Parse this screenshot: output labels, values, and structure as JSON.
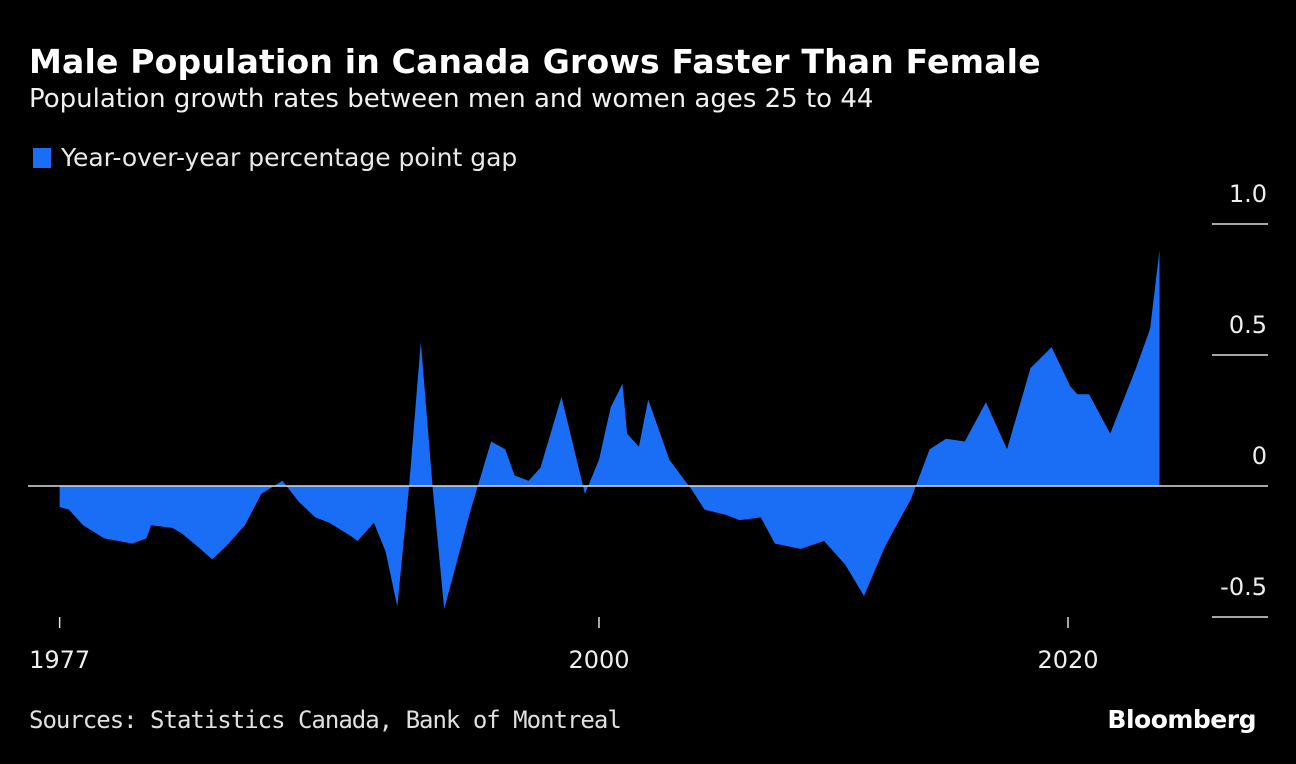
{
  "title": "Male Population in Canada Grows Faster Than Female",
  "subtitle": "Population growth rates between men and women ages 25 to 44",
  "source": "Sources: Statistics Canada, Bank of Montreal",
  "logo": "Bloomberg",
  "chart_data": {
    "type": "area",
    "title": "Male Population in Canada Grows Faster Than Female",
    "subtitle": "Population growth rates between men and women ages 25 to 44",
    "legend_position": "top-left",
    "grid": true,
    "ylim": [
      -0.5,
      1.0
    ],
    "yticks": [
      1.0,
      0.5,
      0,
      -0.5
    ],
    "ytick_labels": [
      "1.0",
      "0.5",
      "0",
      "-0.5"
    ],
    "xticks": [
      1977,
      2000,
      2020
    ],
    "xtick_labels": [
      "1977",
      "2000",
      "2020"
    ],
    "series": [
      {
        "name": "Year-over-year percentage point gap",
        "color": "#1a6ef5",
        "x": [
          1977.0,
          1977.4,
          1978.0,
          1978.9,
          1979.5,
          1980.1,
          1980.7,
          1980.9,
          1981.8,
          1982.2,
          1983.0,
          1983.5,
          1984.1,
          1984.9,
          1985.6,
          1986.5,
          1987.2,
          1987.9,
          1988.5,
          1989.4,
          1989.7,
          1990.4,
          1990.9,
          1991.4,
          1991.9,
          1992.4,
          1992.9,
          1993.4,
          1994.5,
          1995.4,
          1996.0,
          1996.4,
          1997.0,
          1997.5,
          1998.4,
          1999.4,
          2000.0,
          2000.5,
          2001.0,
          2001.2,
          2001.7,
          2002.1,
          2003.0,
          2004.0,
          2004.5,
          2005.4,
          2006.0,
          2006.9,
          2007.5,
          2008.6,
          2009.6,
          2010.5,
          2011.3,
          2012.2,
          2013.3,
          2014.1,
          2014.8,
          2015.6,
          2016.5,
          2017.1,
          2017.4,
          2018.4,
          2019.3,
          2020.1,
          2020.4,
          2020.9,
          2021.8,
          2022.9,
          2023.5,
          2023.9
        ],
        "y": [
          -0.08,
          -0.09,
          -0.15,
          -0.2,
          -0.21,
          -0.22,
          -0.2,
          -0.15,
          -0.16,
          -0.18,
          -0.24,
          -0.28,
          -0.23,
          -0.15,
          -0.03,
          0.02,
          -0.06,
          -0.12,
          -0.14,
          -0.19,
          -0.21,
          -0.14,
          -0.25,
          -0.46,
          0,
          0.55,
          0,
          -0.47,
          -0.1,
          0.17,
          0.14,
          0.04,
          0.02,
          0.07,
          0.34,
          -0.03,
          0.1,
          0.3,
          0.39,
          0.2,
          0.15,
          0.33,
          0.1,
          -0.02,
          -0.09,
          -0.11,
          -0.13,
          -0.12,
          -0.22,
          -0.24,
          -0.21,
          -0.3,
          -0.42,
          -0.23,
          -0.05,
          0.14,
          0.18,
          0.17,
          0.32,
          0.2,
          0.14,
          0.45,
          0.53,
          0.38,
          0.35,
          0.35,
          0.2,
          0.45,
          0.6,
          0.9
        ]
      }
    ]
  }
}
